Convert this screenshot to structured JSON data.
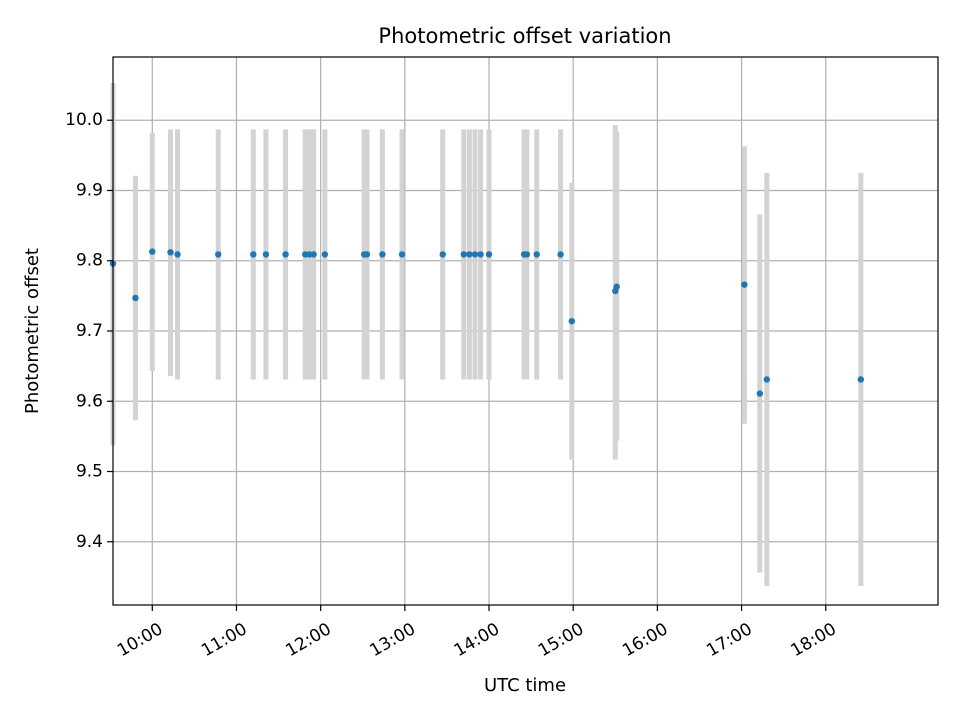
{
  "chart_data": {
    "type": "scatter",
    "title": "Photometric offset variation",
    "xlabel": "UTC time",
    "ylabel": "Photometric offset",
    "x_ticks": [
      "10:00",
      "11:00",
      "12:00",
      "13:00",
      "14:00",
      "15:00",
      "16:00",
      "17:00",
      "18:00"
    ],
    "y_ticks": [
      "9.4",
      "9.5",
      "9.6",
      "9.7",
      "9.8",
      "9.9",
      "10.0"
    ],
    "xlim": [
      "09:32",
      "19:20"
    ],
    "ylim": [
      9.31,
      10.09
    ],
    "grid": true,
    "colors": {
      "point": "#1f77b4",
      "errorbar": "#d3d3d3",
      "grid": "#b0b0b0"
    },
    "series": [
      {
        "points": [
          {
            "x": "09:32",
            "y": 9.796,
            "ylow": 9.537,
            "yhigh": 10.053
          },
          {
            "x": "09:48",
            "y": 9.747,
            "ylow": 9.573,
            "yhigh": 9.921
          },
          {
            "x": "10:00",
            "y": 9.813,
            "ylow": 9.643,
            "yhigh": 9.982
          },
          {
            "x": "10:13",
            "y": 9.812,
            "ylow": 9.636,
            "yhigh": 9.987
          },
          {
            "x": "10:18",
            "y": 9.809,
            "ylow": 9.631,
            "yhigh": 9.987
          },
          {
            "x": "10:47",
            "y": 9.809,
            "ylow": 9.631,
            "yhigh": 9.987
          },
          {
            "x": "11:12",
            "y": 9.809,
            "ylow": 9.631,
            "yhigh": 9.987
          },
          {
            "x": "11:21",
            "y": 9.809,
            "ylow": 9.631,
            "yhigh": 9.987
          },
          {
            "x": "11:35",
            "y": 9.809,
            "ylow": 9.631,
            "yhigh": 9.987
          },
          {
            "x": "11:49",
            "y": 9.809,
            "ylow": 9.631,
            "yhigh": 9.987
          },
          {
            "x": "11:52",
            "y": 9.809,
            "ylow": 9.631,
            "yhigh": 9.987
          },
          {
            "x": "11:55",
            "y": 9.809,
            "ylow": 9.631,
            "yhigh": 9.987
          },
          {
            "x": "12:03",
            "y": 9.809,
            "ylow": 9.631,
            "yhigh": 9.987
          },
          {
            "x": "12:31",
            "y": 9.809,
            "ylow": 9.631,
            "yhigh": 9.987
          },
          {
            "x": "12:33",
            "y": 9.809,
            "ylow": 9.631,
            "yhigh": 9.987
          },
          {
            "x": "12:44",
            "y": 9.809,
            "ylow": 9.631,
            "yhigh": 9.987
          },
          {
            "x": "12:58",
            "y": 9.809,
            "ylow": 9.631,
            "yhigh": 9.987
          },
          {
            "x": "13:27",
            "y": 9.809,
            "ylow": 9.631,
            "yhigh": 9.987
          },
          {
            "x": "13:42",
            "y": 9.809,
            "ylow": 9.631,
            "yhigh": 9.987
          },
          {
            "x": "13:46",
            "y": 9.809,
            "ylow": 9.631,
            "yhigh": 9.987
          },
          {
            "x": "13:50",
            "y": 9.809,
            "ylow": 9.631,
            "yhigh": 9.987
          },
          {
            "x": "13:54",
            "y": 9.809,
            "ylow": 9.631,
            "yhigh": 9.987
          },
          {
            "x": "14:00",
            "y": 9.809,
            "ylow": 9.631,
            "yhigh": 9.987
          },
          {
            "x": "14:25",
            "y": 9.809,
            "ylow": 9.631,
            "yhigh": 9.987
          },
          {
            "x": "14:27",
            "y": 9.809,
            "ylow": 9.631,
            "yhigh": 9.987
          },
          {
            "x": "14:34",
            "y": 9.809,
            "ylow": 9.631,
            "yhigh": 9.987
          },
          {
            "x": "14:51",
            "y": 9.809,
            "ylow": 9.631,
            "yhigh": 9.987
          },
          {
            "x": "14:59",
            "y": 9.714,
            "ylow": 9.517,
            "yhigh": 9.911
          },
          {
            "x": "15:30",
            "y": 9.757,
            "ylow": 9.517,
            "yhigh": 9.993
          },
          {
            "x": "15:31",
            "y": 9.763,
            "ylow": 9.544,
            "yhigh": 9.984
          },
          {
            "x": "17:02",
            "y": 9.766,
            "ylow": 9.568,
            "yhigh": 9.963
          },
          {
            "x": "17:13",
            "y": 9.611,
            "ylow": 9.356,
            "yhigh": 9.866
          },
          {
            "x": "17:18",
            "y": 9.631,
            "ylow": 9.337,
            "yhigh": 9.925
          },
          {
            "x": "18:25",
            "y": 9.631,
            "ylow": 9.337,
            "yhigh": 9.925
          }
        ]
      }
    ]
  }
}
